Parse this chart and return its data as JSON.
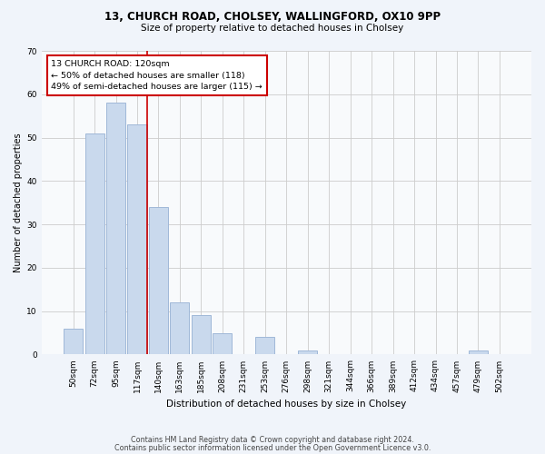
{
  "title1": "13, CHURCH ROAD, CHOLSEY, WALLINGFORD, OX10 9PP",
  "title2": "Size of property relative to detached houses in Cholsey",
  "xlabel": "Distribution of detached houses by size in Cholsey",
  "ylabel": "Number of detached properties",
  "bins": [
    "50sqm",
    "72sqm",
    "95sqm",
    "117sqm",
    "140sqm",
    "163sqm",
    "185sqm",
    "208sqm",
    "231sqm",
    "253sqm",
    "276sqm",
    "298sqm",
    "321sqm",
    "344sqm",
    "366sqm",
    "389sqm",
    "412sqm",
    "434sqm",
    "457sqm",
    "479sqm",
    "502sqm"
  ],
  "values": [
    6,
    51,
    58,
    53,
    34,
    12,
    9,
    5,
    0,
    4,
    0,
    1,
    0,
    0,
    0,
    0,
    0,
    0,
    0,
    1,
    0
  ],
  "bar_color": "#c9d9ed",
  "bar_edge_color": "#a0b8d8",
  "vline_x": 3.45,
  "vline_color": "#cc0000",
  "annotation_text": "13 CHURCH ROAD: 120sqm\n← 50% of detached houses are smaller (118)\n49% of semi-detached houses are larger (115) →",
  "annotation_box_color": "#ffffff",
  "annotation_box_edge": "#cc0000",
  "ylim": [
    0,
    70
  ],
  "yticks": [
    0,
    10,
    20,
    30,
    40,
    50,
    60,
    70
  ],
  "footer1": "Contains HM Land Registry data © Crown copyright and database right 2024.",
  "footer2": "Contains public sector information licensed under the Open Government Licence v3.0.",
  "bg_color": "#f0f4fa",
  "plot_bg_color": "#f8fafc",
  "title1_fontsize": 8.5,
  "title2_fontsize": 7.5,
  "xlabel_fontsize": 7.5,
  "ylabel_fontsize": 7.0,
  "tick_fontsize": 6.5,
  "annotation_fontsize": 6.8,
  "footer_fontsize": 5.8
}
